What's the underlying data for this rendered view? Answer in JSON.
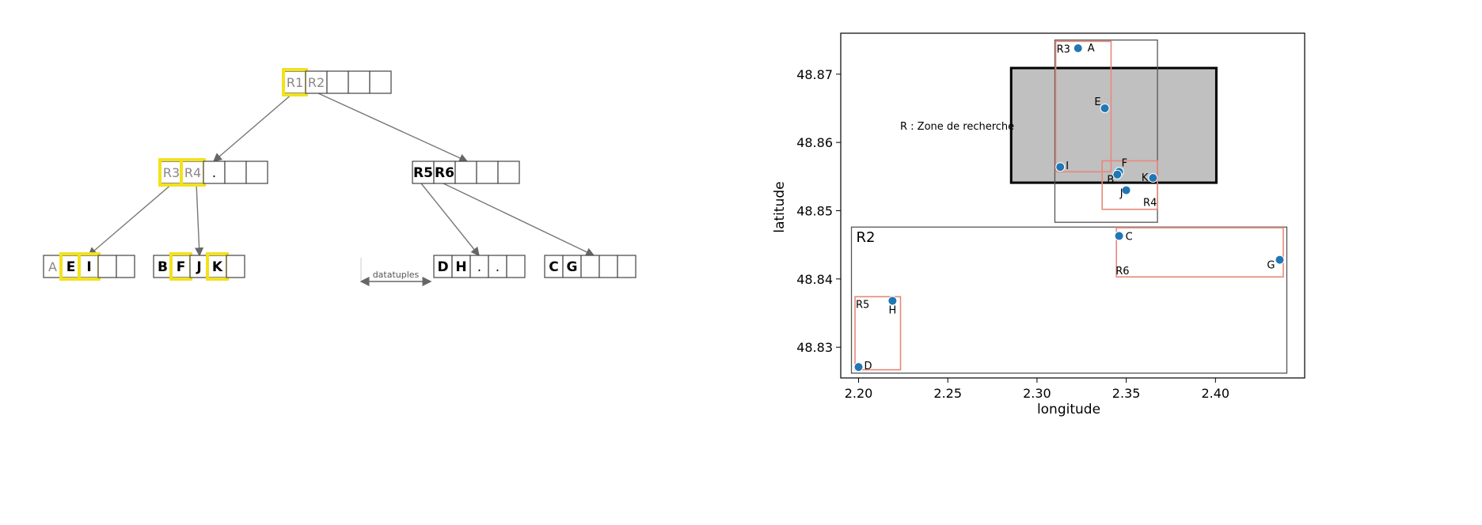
{
  "tree": {
    "nodes": [
      {
        "id": "root",
        "cells": [
          "R1",
          "R2",
          "",
          "",
          ""
        ],
        "highlight": [
          0
        ],
        "grey": [
          0,
          1
        ],
        "bold": []
      },
      {
        "id": "left-mid",
        "cells": [
          "R3",
          "R4",
          ".",
          "",
          ""
        ],
        "highlight": [
          0,
          1
        ],
        "grey": [
          0,
          1
        ],
        "bold": []
      },
      {
        "id": "right-mid",
        "cells": [
          "R5",
          "R6",
          "",
          "",
          ""
        ],
        "highlight": [],
        "grey": [],
        "bold": [
          0,
          1
        ]
      },
      {
        "id": "leaf-aei",
        "cells": [
          "A",
          "E",
          "I",
          "",
          ""
        ],
        "highlight": [
          1,
          2
        ],
        "grey": [
          0
        ],
        "bold": [
          1,
          2
        ]
      },
      {
        "id": "leaf-bfjk",
        "cells": [
          "B",
          "F",
          "J",
          "K",
          ""
        ],
        "highlight": [
          1,
          3
        ],
        "grey": [],
        "bold": [
          0,
          1,
          2,
          3
        ]
      },
      {
        "id": "leaf-dh",
        "cells": [
          "D",
          "H",
          ".",
          ".",
          ""
        ],
        "highlight": [],
        "grey": [],
        "bold": [
          0,
          1
        ]
      },
      {
        "id": "leaf-cg",
        "cells": [
          "C",
          "G",
          "",
          "",
          ""
        ],
        "highlight": [],
        "grey": [],
        "bold": [
          0,
          1
        ]
      }
    ],
    "datatuples_label": "datatuples",
    "highlight_color": "#f2e21b"
  },
  "chart_data": {
    "type": "scatter",
    "xlabel": "longitude",
    "ylabel": "latitude",
    "xlim": [
      2.19,
      2.45
    ],
    "ylim": [
      48.8255,
      48.876
    ],
    "xticks": [
      2.2,
      2.25,
      2.3,
      2.35,
      2.4
    ],
    "xtick_labels": [
      "2.20",
      "2.25",
      "2.30",
      "2.35",
      "2.40"
    ],
    "yticks": [
      48.83,
      48.84,
      48.85,
      48.86,
      48.87
    ],
    "ytick_labels": [
      "48.83",
      "48.84",
      "48.85",
      "48.86",
      "48.87"
    ],
    "points": [
      {
        "label": "A",
        "x": 2.323,
        "y": 48.8738
      },
      {
        "label": "E",
        "x": 2.338,
        "y": 48.865
      },
      {
        "label": "I",
        "x": 2.313,
        "y": 48.8564
      },
      {
        "label": "F",
        "x": 2.346,
        "y": 48.8557
      },
      {
        "label": "B",
        "x": 2.345,
        "y": 48.8553
      },
      {
        "label": "K",
        "x": 2.365,
        "y": 48.8548
      },
      {
        "label": "J",
        "x": 2.35,
        "y": 48.853
      },
      {
        "label": "C",
        "x": 2.346,
        "y": 48.8463
      },
      {
        "label": "G",
        "x": 2.436,
        "y": 48.8428
      },
      {
        "label": "H",
        "x": 2.219,
        "y": 48.8368
      },
      {
        "label": "D",
        "x": 2.2,
        "y": 48.8271
      }
    ],
    "rectangles": [
      {
        "name": "R",
        "x0": 2.2855,
        "x1": 2.4005,
        "y0": 48.8541,
        "y1": 48.8709,
        "kind": "search"
      },
      {
        "name": "R1",
        "x0": 2.31,
        "x1": 2.3675,
        "y0": 48.8483,
        "y1": 48.875,
        "kind": "node"
      },
      {
        "name": "R2",
        "x0": 2.196,
        "x1": 2.44,
        "y0": 48.8262,
        "y1": 48.8476,
        "kind": "node"
      },
      {
        "name": "R3",
        "x0": 2.3105,
        "x1": 2.3415,
        "y0": 48.8557,
        "y1": 48.8748,
        "kind": "leaf"
      },
      {
        "name": "R4",
        "x0": 2.3365,
        "x1": 2.3675,
        "y0": 48.8502,
        "y1": 48.8573,
        "kind": "leaf"
      },
      {
        "name": "R5",
        "x0": 2.198,
        "x1": 2.2235,
        "y0": 48.8267,
        "y1": 48.8374,
        "kind": "leaf"
      },
      {
        "name": "R6",
        "x0": 2.3445,
        "x1": 2.438,
        "y0": 48.8403,
        "y1": 48.8475,
        "kind": "leaf"
      }
    ],
    "rect_labels": [
      "R3",
      "R4",
      "R5",
      "R6",
      "R2"
    ],
    "annotation": "R : Zone de recherche",
    "point_color": "#1f77b4",
    "leaf_color": "#e8887a",
    "node_color": "#555555",
    "search_fill": "#c0c0c0"
  }
}
